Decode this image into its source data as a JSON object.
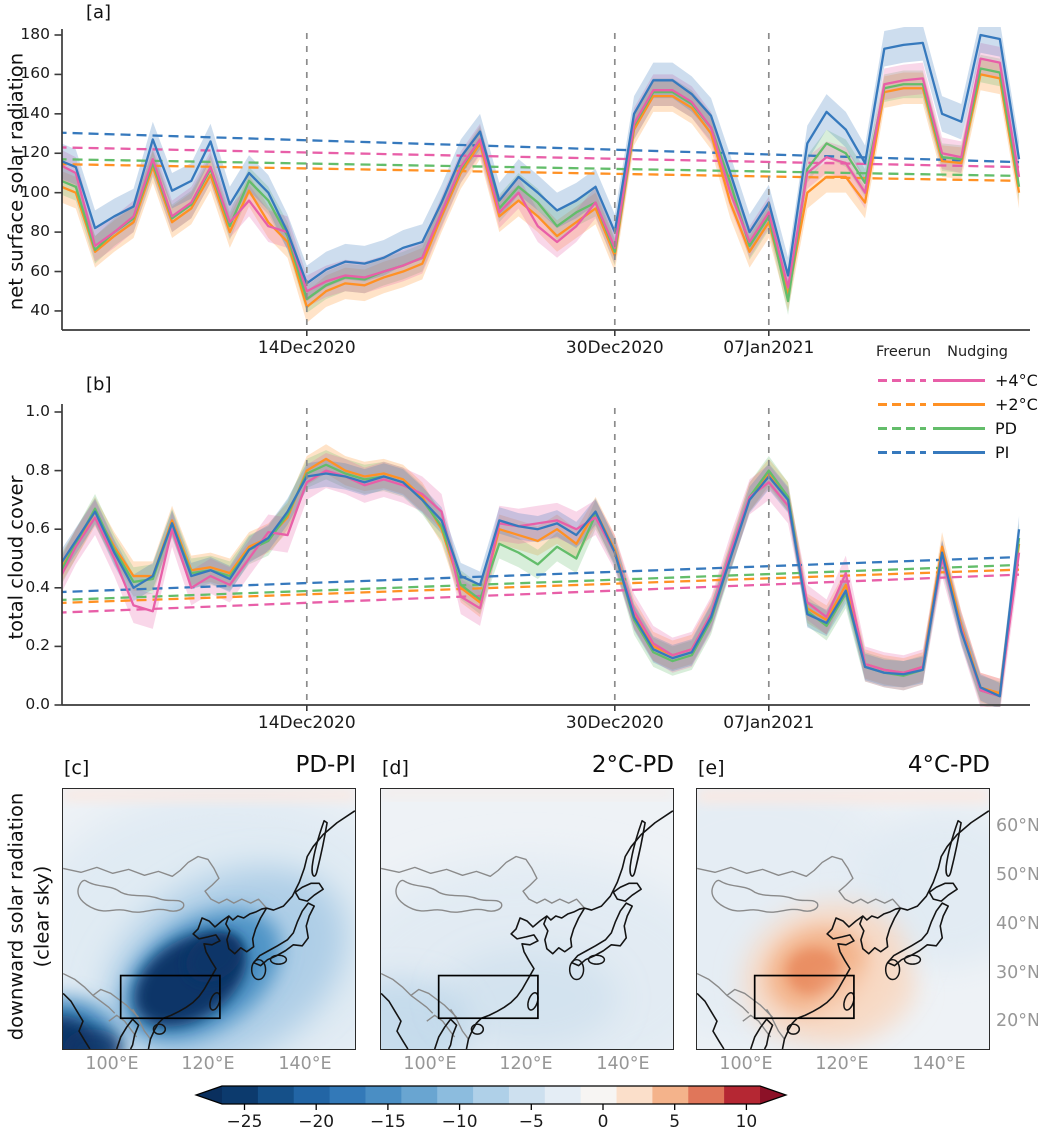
{
  "chart_data": [
    {
      "type": "line",
      "panel_tag": "[a]",
      "ylabel": "net surface solar radiation",
      "ylim": [
        40,
        180
      ],
      "ytick_values": [
        180,
        160,
        140,
        120,
        100,
        80,
        60,
        40
      ],
      "ytick_labels": [
        "180",
        "160",
        "140",
        "120",
        "100",
        "80",
        "60",
        "40"
      ],
      "n_days": 51,
      "x_tick_days": [
        13,
        29,
        37
      ],
      "x_tick_labels": [
        "14Dec2020",
        "30Dec2020",
        "07Jan2021"
      ],
      "vline_days": [
        13,
        29,
        37
      ],
      "series": [
        {
          "name": "+2°C Nudging",
          "style": "solid",
          "color_key": "orange",
          "band": 8,
          "values": [
            104,
            100,
            70,
            78,
            85,
            113,
            85,
            92,
            109,
            80,
            101,
            85,
            75,
            42,
            50,
            54,
            53,
            57,
            60,
            64,
            88,
            110,
            125,
            88,
            96,
            88,
            78,
            85,
            92,
            68,
            132,
            149,
            149,
            143,
            130,
            95,
            70,
            85,
            48,
            100,
            108,
            108,
            95,
            151,
            153,
            153,
            116,
            115,
            160,
            158,
            100
          ]
        },
        {
          "name": "PD Nudging",
          "style": "solid",
          "color_key": "green",
          "band": 7,
          "values": [
            107,
            103,
            71,
            80,
            87,
            115,
            87,
            94,
            112,
            83,
            106,
            96,
            78,
            46,
            53,
            57,
            56,
            60,
            63,
            67,
            90,
            112,
            127,
            92,
            103,
            95,
            83,
            90,
            95,
            70,
            134,
            151,
            151,
            145,
            133,
            105,
            73,
            88,
            45,
            112,
            125,
            120,
            105,
            153,
            155,
            155,
            118,
            117,
            163,
            161,
            103
          ]
        },
        {
          "name": "+4°C Nudging",
          "style": "solid",
          "color_key": "pink",
          "band": 8,
          "values": [
            115,
            110,
            73,
            80,
            88,
            117,
            88,
            95,
            113,
            85,
            96,
            83,
            80,
            50,
            55,
            58,
            57,
            60,
            63,
            67,
            90,
            113,
            127,
            90,
            100,
            83,
            75,
            83,
            95,
            72,
            135,
            152,
            152,
            146,
            133,
            100,
            75,
            90,
            52,
            110,
            118,
            115,
            100,
            155,
            157,
            158,
            120,
            118,
            168,
            166,
            108
          ]
        },
        {
          "name": "PI Nudging",
          "style": "solid",
          "color_key": "blue",
          "band": 9,
          "values": [
            117,
            113,
            82,
            88,
            93,
            127,
            101,
            106,
            126,
            94,
            110,
            100,
            80,
            54,
            61,
            65,
            64,
            67,
            72,
            75,
            95,
            118,
            131,
            96,
            108,
            100,
            91,
            96,
            103,
            80,
            140,
            157,
            157,
            150,
            139,
            110,
            80,
            95,
            58,
            125,
            141,
            132,
            115,
            173,
            175,
            176,
            140,
            136,
            180,
            178,
            117
          ]
        },
        {
          "name": "+4°C Freerun",
          "style": "dashed",
          "color_key": "pink",
          "trend": [
            123,
            113
          ]
        },
        {
          "name": "+2°C Freerun",
          "style": "dashed",
          "color_key": "orange",
          "trend": [
            114.5,
            106
          ]
        },
        {
          "name": "PD Freerun",
          "style": "dashed",
          "color_key": "green",
          "trend": [
            117,
            108.5
          ]
        },
        {
          "name": "PI Freerun",
          "style": "dashed",
          "color_key": "blue",
          "trend": [
            130.5,
            115.5
          ]
        }
      ]
    },
    {
      "type": "line",
      "panel_tag": "[b]",
      "ylabel": "total cloud cover",
      "ylim": [
        0.0,
        1.0
      ],
      "ytick_values": [
        1.0,
        0.8,
        0.6,
        0.4,
        0.2,
        0.0
      ],
      "ytick_labels": [
        "1.0",
        "0.8",
        "0.6",
        "0.4",
        "0.2",
        "0.0"
      ],
      "n_days": 51,
      "x_tick_days": [
        13,
        29,
        37
      ],
      "x_tick_labels": [
        "14Dec2020",
        "30Dec2020",
        "07Jan2021"
      ],
      "vline_days": [
        13,
        29,
        37
      ],
      "series": [
        {
          "name": "+2°C Nudging",
          "style": "solid",
          "color_key": "orange",
          "band": 0.05,
          "values": [
            0.44,
            0.55,
            0.66,
            0.54,
            0.44,
            0.44,
            0.63,
            0.46,
            0.47,
            0.45,
            0.54,
            0.57,
            0.64,
            0.8,
            0.84,
            0.8,
            0.78,
            0.79,
            0.77,
            0.71,
            0.6,
            0.4,
            0.35,
            0.6,
            0.58,
            0.56,
            0.6,
            0.55,
            0.66,
            0.53,
            0.31,
            0.2,
            0.17,
            0.19,
            0.31,
            0.51,
            0.71,
            0.79,
            0.71,
            0.33,
            0.29,
            0.41,
            0.14,
            0.12,
            0.11,
            0.13,
            0.54,
            0.27,
            0.06,
            0.04,
            0.55
          ]
        },
        {
          "name": "PD Nudging",
          "style": "solid",
          "color_key": "green",
          "band": 0.05,
          "values": [
            0.43,
            0.55,
            0.67,
            0.53,
            0.42,
            0.43,
            0.62,
            0.45,
            0.46,
            0.44,
            0.53,
            0.56,
            0.65,
            0.79,
            0.82,
            0.79,
            0.77,
            0.78,
            0.76,
            0.7,
            0.61,
            0.41,
            0.36,
            0.55,
            0.52,
            0.48,
            0.54,
            0.5,
            0.65,
            0.52,
            0.29,
            0.18,
            0.15,
            0.17,
            0.29,
            0.5,
            0.71,
            0.8,
            0.71,
            0.32,
            0.27,
            0.38,
            0.13,
            0.11,
            0.1,
            0.12,
            0.51,
            0.26,
            0.05,
            0.03,
            0.57
          ]
        },
        {
          "name": "+4°C Nudging",
          "style": "solid",
          "color_key": "pink",
          "band": 0.06,
          "values": [
            0.41,
            0.54,
            0.64,
            0.5,
            0.34,
            0.32,
            0.6,
            0.4,
            0.44,
            0.41,
            0.5,
            0.59,
            0.58,
            0.76,
            0.8,
            0.78,
            0.75,
            0.77,
            0.75,
            0.72,
            0.66,
            0.37,
            0.33,
            0.62,
            0.61,
            0.62,
            0.63,
            0.6,
            0.64,
            0.52,
            0.32,
            0.21,
            0.17,
            0.19,
            0.31,
            0.52,
            0.71,
            0.76,
            0.68,
            0.35,
            0.3,
            0.45,
            0.14,
            0.12,
            0.11,
            0.13,
            0.5,
            0.26,
            0.05,
            0.03,
            0.52
          ]
        },
        {
          "name": "PI Nudging",
          "style": "solid",
          "color_key": "blue",
          "band": 0.045,
          "values": [
            0.46,
            0.56,
            0.66,
            0.52,
            0.4,
            0.44,
            0.62,
            0.44,
            0.46,
            0.43,
            0.53,
            0.57,
            0.66,
            0.78,
            0.79,
            0.78,
            0.76,
            0.78,
            0.76,
            0.7,
            0.63,
            0.44,
            0.41,
            0.63,
            0.61,
            0.6,
            0.62,
            0.58,
            0.66,
            0.52,
            0.3,
            0.19,
            0.16,
            0.18,
            0.3,
            0.5,
            0.7,
            0.78,
            0.7,
            0.31,
            0.28,
            0.39,
            0.13,
            0.11,
            0.105,
            0.12,
            0.52,
            0.25,
            0.06,
            0.03,
            0.6
          ]
        },
        {
          "name": "+4°C Freerun",
          "style": "dashed",
          "color_key": "pink",
          "trend": [
            0.315,
            0.445
          ]
        },
        {
          "name": "+2°C Freerun",
          "style": "dashed",
          "color_key": "orange",
          "trend": [
            0.348,
            0.462
          ]
        },
        {
          "name": "PD Freerun",
          "style": "dashed",
          "color_key": "green",
          "trend": [
            0.358,
            0.478
          ]
        },
        {
          "name": "PI Freerun",
          "style": "dashed",
          "color_key": "blue",
          "trend": [
            0.385,
            0.505
          ]
        }
      ]
    },
    {
      "type": "heatmap",
      "ylabel_lines": [
        "downward solar radiation",
        "(clear sky)"
      ],
      "maps": [
        {
          "tag": "[c]",
          "title": "PD-PI",
          "peak_anomaly": -26,
          "pattern": "strong negative anomaly over SE China and East China Sea"
        },
        {
          "tag": "[d]",
          "title": "2°C-PD",
          "peak_anomaly": -2,
          "pattern": "near-neutral, slightly negative everywhere"
        },
        {
          "tag": "[e]",
          "title": "4°C-PD",
          "peak_anomaly": 7,
          "pattern": "positive anomaly centered on SE China"
        }
      ],
      "lon_tick_labels": [
        "100°E",
        "120°E",
        "140°E"
      ],
      "lat_tick_labels": [
        "60°N",
        "50°N",
        "40°N",
        "30°N",
        "20°N"
      ],
      "box_region": {
        "lon": [
          102,
          122.5
        ],
        "lat": [
          20.5,
          29.5
        ]
      },
      "colorbar": {
        "tick_values": [
          -25,
          -20,
          -15,
          -10,
          -5,
          0,
          5,
          10
        ],
        "tick_labels": [
          "−25",
          "−20",
          "−15",
          "−10",
          "−5",
          "0",
          "5",
          "10"
        ]
      }
    }
  ],
  "legend": {
    "headers": [
      "Freerun",
      "Nudging"
    ],
    "entries": [
      {
        "label": "+4°C",
        "color_key": "pink"
      },
      {
        "label": "+2°C",
        "color_key": "orange"
      },
      {
        "label": "PD",
        "color_key": "green"
      },
      {
        "label": "PI",
        "color_key": "blue"
      }
    ]
  },
  "palette": {
    "pink": "#e85fa8",
    "orange": "#ff9124",
    "green": "#63bd6a",
    "blue": "#3679bd",
    "vline_gray": "#8c8c8c",
    "axis": "#3a3a3a",
    "map_label_gray": "#979797",
    "deep_blue": "#0a3568",
    "mid_blue": "#4a90c4",
    "light_blue": "#a9cbe5",
    "veil_blue": "#dfeaf3",
    "pale_pink": "#f9e9e3",
    "orange_core": "#ea8f64",
    "orange_mid": "#f3b48c",
    "orange_light": "#f8d8c3",
    "colorbar_stops": [
      "#0c3a6d",
      "#155089",
      "#2265a5",
      "#3379b8",
      "#4a8ec4",
      "#69a5d1",
      "#8cbcde",
      "#afd0e8",
      "#cde0ef",
      "#e4edf5",
      "#f7f5f3",
      "#fbdfca",
      "#f4b38b",
      "#e0765a",
      "#b52733"
    ],
    "colorbar_left_tip": "#0a2f5e",
    "colorbar_right_tip": "#8c1127"
  }
}
